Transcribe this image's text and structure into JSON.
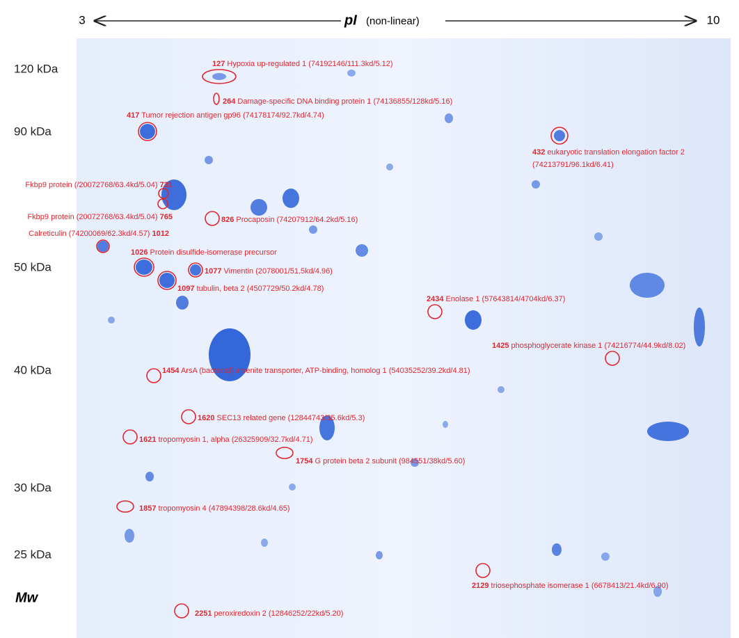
{
  "axis": {
    "pi_low": "3",
    "pi_high": "10",
    "pi_label": "pI",
    "pi_note": "(non-linear)",
    "mw_label": "Mw",
    "mw_ticks": [
      "120 kDa",
      "90 kDa",
      "50 kDa",
      "40 kDa",
      "30 kDa",
      "25 kDa"
    ]
  },
  "spots": [
    {
      "id": "127",
      "name": "Hypoxia up-regulated 1 (74192146/111.3kd/5.12)"
    },
    {
      "id": "264",
      "name": "Damage-specific DNA binding protein 1 (74136855/128kd/5.16)"
    },
    {
      "id": "417",
      "name": "Tumor rejection antigen gp96 (74178174/92.7kd/4.74)"
    },
    {
      "id": "432",
      "name": "eukaryotic translation elongation factor 2",
      "detail": "(74213791/96.1kd/6.41)"
    },
    {
      "id": "731",
      "name": "Fkbp9 protein (/20072768/63.4kd/5.04)"
    },
    {
      "id": "765",
      "name": "Fkbp9 protein (20072768/63.4kd/5.04)"
    },
    {
      "id": "826",
      "name": "Procaposin (74207912/64.2kd/5.16)"
    },
    {
      "id": "1012",
      "name": "Calreticulin (74200069/62.3kd/4.57)"
    },
    {
      "id": "1026",
      "name": "Protein disulfide-isomerase precursor"
    },
    {
      "id": "1077",
      "name": "Vimentin (2078001/51.5kd/4.96)"
    },
    {
      "id": "1097",
      "name": "tubulin, beta 2 (4507729/50.2kd/4.78)"
    },
    {
      "id": "2434",
      "name": "Enolase 1 (57643814/4704kd/6.37)"
    },
    {
      "id": "1425",
      "name": "phosphoglycerate kinase 1 (74216774/44.9kd/8.02)"
    },
    {
      "id": "1454",
      "name": "ArsA (bacterial) arsenite transporter, ATP-binding, homolog 1 (54035252/39.2kd/4.81)"
    },
    {
      "id": "1620",
      "name": "SEC13 related gene (12844743/35.6kd/5.3)"
    },
    {
      "id": "1621",
      "name": "tropomyosin 1, alpha (26325909/32.7kd/4.71)"
    },
    {
      "id": "1754",
      "name": "G protein beta 2 subunit  (984551/38kd/5.60)"
    },
    {
      "id": "1857",
      "name": "tropomyosin 4 (47894398/28.6kd/4.65)"
    },
    {
      "id": "2129",
      "name": "triosephosphate isomerase 1 (6678413/21.4kd/6.90)"
    },
    {
      "id": "2251",
      "name": "peroxiredoxin 2  (12846252/22kd/5.20)"
    }
  ]
}
